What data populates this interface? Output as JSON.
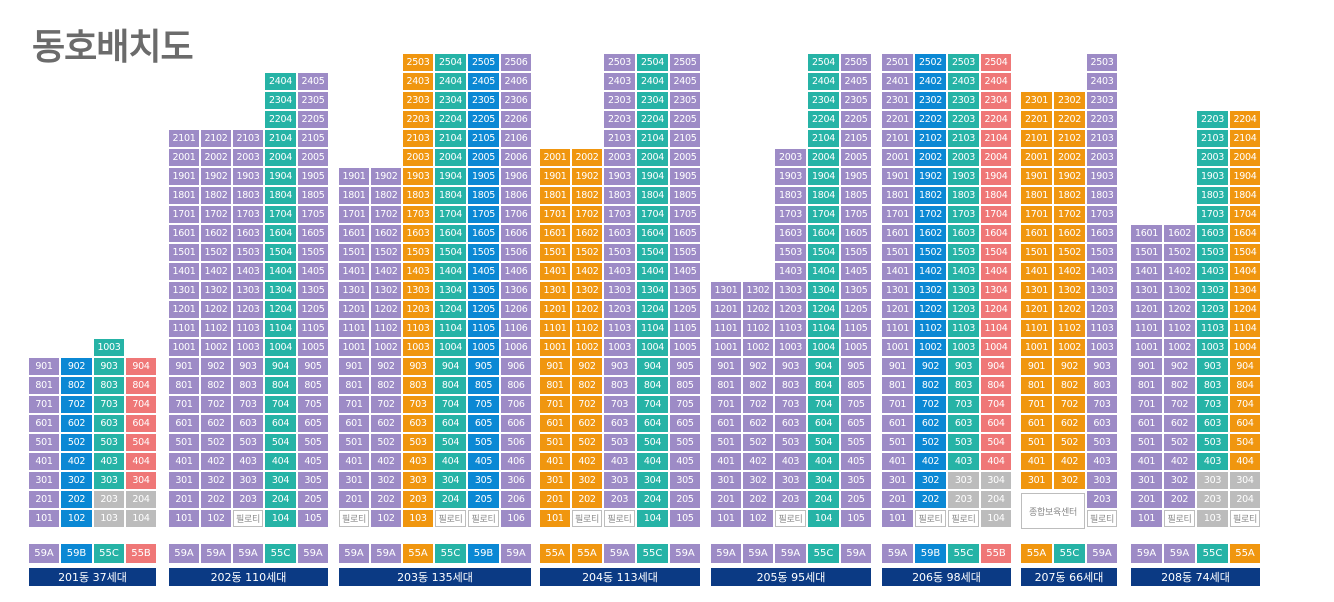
{
  "title": "동호배치도",
  "colors": {
    "59A": "#9d8bc6",
    "59B": "#0b88d4",
    "55C": "#26b3a6",
    "55B": "#ef7777",
    "55A": "#f0960f",
    "gray": "#bcbcbc",
    "label_bg": "#0b3a84"
  },
  "pilotis_text": "필로티",
  "facility_text": "종합보육센터",
  "buildings": [
    {
      "label": "201동 37세대",
      "types": [
        "59A",
        "59B",
        "55C",
        "55B"
      ],
      "top_floors": [
        9,
        9,
        9,
        9
      ],
      "overrides": {
        "1003": {
          "floor": 10,
          "col": 3
        }
      },
      "extra_units": [
        {
          "floor": 10,
          "col": 3,
          "type": "55C",
          "num": "1003"
        }
      ],
      "units_override": {
        "103": "gray",
        "104": "gray",
        "203": "gray",
        "204": "gray"
      },
      "special": {}
    },
    {
      "label": "202동 110세대",
      "types": [
        "59A",
        "59A",
        "59A",
        "55C",
        "59A"
      ],
      "top_floors": [
        21,
        21,
        21,
        24,
        24
      ],
      "units_override": {},
      "special": {
        "103": "pilotis"
      },
      "col_overrides": {
        "4": {
          "min": 17,
          "type": "59A"
        }
      },
      "num_override": {}
    },
    {
      "label": "203동 135세대",
      "types": [
        "59A",
        "59A",
        "55A",
        "55C",
        "59B",
        "59A"
      ],
      "top_floors": [
        19,
        19,
        25,
        25,
        25,
        25
      ],
      "units_override": {},
      "special": {
        "101": "pilotis",
        "104": "pilotis",
        "105": "pilotis"
      },
      "top_types": {
        "3": "55A",
        "4": "55C",
        "5": "59B"
      }
    },
    {
      "label": "204동 113세대",
      "types": [
        "55A",
        "55A",
        "59A",
        "55C",
        "59A"
      ],
      "top_floors": [
        20,
        20,
        25,
        25,
        25
      ],
      "units_override": {},
      "special": {
        "102": "pilotis",
        "103": "pilotis"
      }
    },
    {
      "label": "205동 95세대",
      "types": [
        "59A",
        "59A",
        "59A",
        "55C",
        "59A"
      ],
      "top_floors": [
        13,
        13,
        20,
        25,
        25
      ],
      "units_override": {},
      "special": {
        "103": "pilotis"
      }
    },
    {
      "label": "206동 98세대",
      "types": [
        "59A",
        "59B",
        "55C",
        "55B"
      ],
      "top_floors": [
        25,
        25,
        25,
        25
      ],
      "units_override": {
        "303": "gray",
        "304": "gray",
        "203": "gray",
        "204": "gray",
        "104": "gray"
      },
      "special": {
        "102": "pilotis",
        "103": "pilotis"
      }
    },
    {
      "label": "207동 66세대",
      "types": [
        "55A",
        "55C",
        "59A"
      ],
      "top_floors": [
        23,
        23,
        25
      ],
      "units_override": {},
      "special": {
        "103": "pilotis"
      },
      "facility": {
        "text": "종합보육센터"
      }
    },
    {
      "label": "208동 74세대",
      "types": [
        "59A",
        "59A",
        "55C",
        "55A"
      ],
      "top_floors": [
        16,
        16,
        22,
        22
      ],
      "units_override": {
        "303": "gray",
        "304": "gray",
        "203": "gray",
        "204": "gray",
        "103": "gray"
      },
      "special": {
        "102": "pilotis",
        "104": "pilotis"
      }
    }
  ]
}
